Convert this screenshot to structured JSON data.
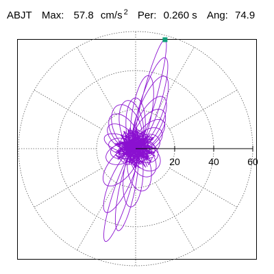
{
  "header": {
    "station": "ABJT",
    "max_label": "Max:",
    "max_value": "57.8",
    "max_unit": "cm/s",
    "max_exponent": "2",
    "per_label": "Per:",
    "per_value": "0.260 s",
    "ang_label": "Ang:",
    "ang_value": "74.9"
  },
  "chart_data": {
    "type": "polar-orbit",
    "peak": {
      "magnitude": 57.8,
      "angle_deg": 74.9
    },
    "radius_range": [
      0,
      60
    ],
    "ring_values": [
      20,
      40,
      60
    ],
    "radial_ticks": [
      20,
      40,
      60
    ],
    "tick_labels": [
      "20",
      "40",
      "60"
    ],
    "spokes_every_deg": 30,
    "grid": true,
    "colors": {
      "trace": "#8a10d0",
      "peak_marker": "#0f9f7a",
      "grid": "#555555",
      "axis": "#000000"
    },
    "lobes": [
      {
        "angle_deg": 74.9,
        "length": 57.8,
        "width": 3.5
      },
      {
        "angle_deg": 72,
        "length": 49,
        "width": 5
      },
      {
        "angle_deg": 68,
        "length": 40,
        "width": 6
      },
      {
        "angle_deg": 80,
        "length": 38,
        "width": 5
      },
      {
        "angle_deg": 62,
        "length": 30,
        "width": 6
      },
      {
        "angle_deg": 55,
        "length": 24,
        "width": 6
      },
      {
        "angle_deg": 90,
        "length": 26,
        "width": 5
      },
      {
        "angle_deg": 100,
        "length": 25,
        "width": 6
      },
      {
        "angle_deg": 112,
        "length": 24,
        "width": 7
      },
      {
        "angle_deg": 125,
        "length": 21,
        "width": 6
      },
      {
        "angle_deg": 140,
        "length": 18,
        "width": 5
      },
      {
        "angle_deg": 160,
        "length": 17,
        "width": 4
      },
      {
        "angle_deg": 170,
        "length": 14,
        "width": 4
      },
      {
        "angle_deg": 190,
        "length": 13,
        "width": 4
      },
      {
        "angle_deg": 200,
        "length": 16,
        "width": 5
      },
      {
        "angle_deg": 230,
        "length": 24,
        "width": 6
      },
      {
        "angle_deg": 245,
        "length": 36,
        "width": 5
      },
      {
        "angle_deg": 252,
        "length": 50,
        "width": 4
      },
      {
        "angle_deg": 258,
        "length": 43,
        "width": 4
      },
      {
        "angle_deg": 265,
        "length": 30,
        "width": 5
      },
      {
        "angle_deg": 280,
        "length": 22,
        "width": 6
      },
      {
        "angle_deg": 300,
        "length": 16,
        "width": 6
      },
      {
        "angle_deg": 320,
        "length": 15,
        "width": 6
      },
      {
        "angle_deg": 340,
        "length": 12,
        "width": 5
      },
      {
        "angle_deg": 0,
        "length": 10,
        "width": 4
      },
      {
        "angle_deg": 20,
        "length": 13,
        "width": 5
      },
      {
        "angle_deg": 35,
        "length": 16,
        "width": 5
      },
      {
        "angle_deg": 45,
        "length": 20,
        "width": 5
      }
    ]
  }
}
